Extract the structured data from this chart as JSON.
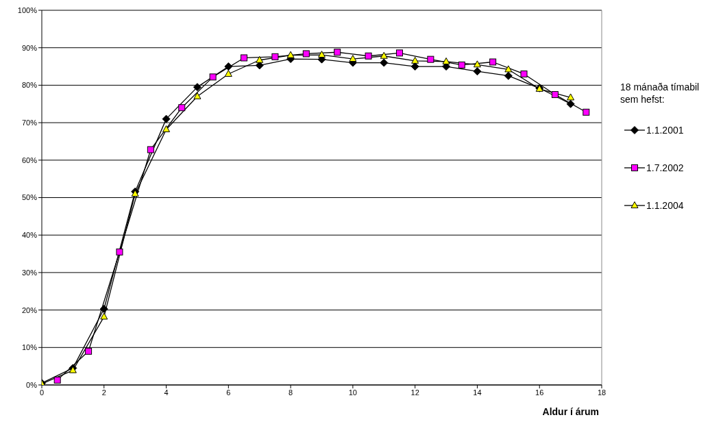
{
  "chart_data": {
    "type": "line",
    "xlabel": "Aldur í árum",
    "legend_title": "18  mánaða tímabil sem hefst:",
    "legend": "right",
    "grid": "y",
    "xlim": [
      0,
      18
    ],
    "xticks": [
      0,
      2,
      4,
      6,
      8,
      10,
      12,
      14,
      16,
      18
    ],
    "ylim": [
      0,
      100
    ],
    "yticks": [
      {
        "value": 0,
        "label": "0%"
      },
      {
        "value": 10,
        "label": "10%"
      },
      {
        "value": 20,
        "label": "20%"
      },
      {
        "value": 30,
        "label": "30%"
      },
      {
        "value": 40,
        "label": "40%"
      },
      {
        "value": 50,
        "label": "50%"
      },
      {
        "value": 60,
        "label": "60%"
      },
      {
        "value": 70,
        "label": "70%"
      },
      {
        "value": 80,
        "label": "80%"
      },
      {
        "value": 90,
        "label": "90%"
      },
      {
        "value": 100,
        "label": "100%"
      }
    ],
    "series": [
      {
        "name": "1.1.2001",
        "color": "#000000",
        "marker": "diamond",
        "x": [
          0,
          1,
          2,
          3,
          4,
          5,
          6,
          7,
          8,
          9,
          10,
          11,
          12,
          13,
          14,
          15,
          16,
          17
        ],
        "values": [
          0.5,
          4.5,
          20.3,
          51.6,
          71,
          79.5,
          85,
          85.3,
          87,
          86.9,
          86,
          86,
          85,
          85,
          83.7,
          82.5,
          79.2,
          75
        ]
      },
      {
        "name": "1.7.2002",
        "color": "#ff00ff",
        "marker": "square",
        "x": [
          0.5,
          1.5,
          2.5,
          3.5,
          4.5,
          5.5,
          6.5,
          7.5,
          8.5,
          9.5,
          10.5,
          11.5,
          12.5,
          13.5,
          14.5,
          15.5,
          16.5,
          17.5
        ],
        "values": [
          1.3,
          9,
          35.5,
          62.8,
          74,
          82.2,
          87.3,
          87.6,
          88.4,
          88.8,
          87.8,
          88.6,
          86.9,
          85.4,
          86.2,
          83,
          77.5,
          72.8
        ]
      },
      {
        "name": "1.1.2004",
        "color": "#ffff00",
        "marker": "triangle",
        "x": [
          0,
          1,
          2,
          3,
          4,
          5,
          6,
          7,
          8,
          9,
          10,
          11,
          12,
          13,
          14,
          15,
          16,
          17
        ],
        "values": [
          0.3,
          3.9,
          18.2,
          51,
          68.2,
          77,
          83,
          86.7,
          88,
          88.1,
          87,
          87.8,
          86.5,
          86.3,
          85.5,
          84.2,
          79,
          76.7
        ]
      }
    ]
  }
}
